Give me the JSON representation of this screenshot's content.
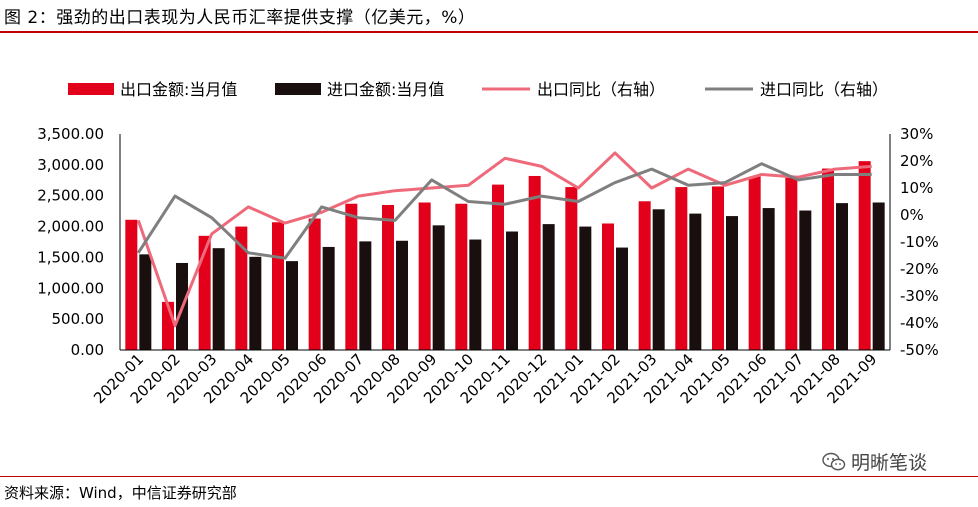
{
  "title": "图 2：强劲的出口表现为人民币汇率提供支撑（亿美元，%）",
  "source": "资料来源：Wind，中信证券研究部",
  "watermark": "明晰笔谈",
  "colors": {
    "export": "#e3001b",
    "import": "#1a0f0f",
    "export_yoy": "#ee6a7a",
    "import_yoy": "#7f7f7f",
    "rule": "#c00000"
  },
  "chart_data": {
    "type": "bar+line",
    "categories": [
      "2020-01",
      "2020-02",
      "2020-03",
      "2020-04",
      "2020-05",
      "2020-06",
      "2020-07",
      "2020-08",
      "2020-09",
      "2020-10",
      "2020-11",
      "2020-12",
      "2021-01",
      "2021-02",
      "2021-03",
      "2021-04",
      "2021-05",
      "2021-06",
      "2021-07",
      "2021-08",
      "2021-09"
    ],
    "bar_series": [
      {
        "name": "出口金额:当月值",
        "values": [
          2110,
          780,
          1850,
          2000,
          2070,
          2130,
          2370,
          2350,
          2390,
          2370,
          2680,
          2820,
          2640,
          2050,
          2410,
          2640,
          2650,
          2810,
          2820,
          2940,
          3060
        ]
      },
      {
        "name": "进口金额:当月值",
        "values": [
          1550,
          1410,
          1650,
          1510,
          1440,
          1670,
          1760,
          1770,
          2020,
          1790,
          1920,
          2040,
          2000,
          1660,
          2280,
          2210,
          2170,
          2300,
          2260,
          2380,
          2390
        ]
      }
    ],
    "line_series": [
      {
        "name": "出口同比（右轴）",
        "values": [
          -2,
          -41,
          -7,
          3,
          -3,
          1,
          7,
          9,
          10,
          11,
          21,
          18,
          10,
          23,
          10,
          17,
          11,
          15,
          14,
          17,
          18
        ]
      },
      {
        "name": "进口同比（右轴）",
        "values": [
          -14,
          7,
          -1,
          -14,
          -16,
          3,
          -1,
          -2,
          13,
          5,
          4,
          7,
          5,
          12,
          17,
          11,
          12,
          19,
          13,
          15,
          15
        ]
      }
    ],
    "y_left": {
      "min": 0,
      "max": 3500,
      "step": 500,
      "ticks": [
        "0.00",
        "500.00",
        "1,000.00",
        "1,500.00",
        "2,000.00",
        "2,500.00",
        "3,000.00",
        "3,500.00"
      ]
    },
    "y_right": {
      "min": -50,
      "max": 30,
      "step": 10,
      "ticks": [
        "-50%",
        "-40%",
        "-30%",
        "-20%",
        "-10%",
        "0%",
        "10%",
        "20%",
        "30%"
      ]
    },
    "legend_position": "top",
    "grid": false
  }
}
